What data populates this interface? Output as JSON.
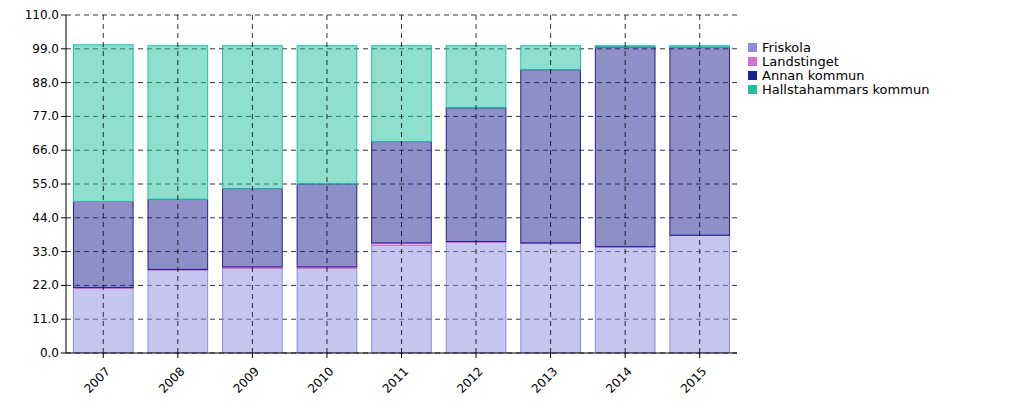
{
  "chart_data": {
    "type": "bar",
    "stacked": true,
    "grid": true,
    "legend": "right",
    "categories": [
      "2007",
      "2008",
      "2009",
      "2010",
      "2011",
      "2012",
      "2013",
      "2014",
      "2015"
    ],
    "series": [
      {
        "name": "Friskola",
        "color": "#8c8ce0",
        "values": [
          21,
          27,
          27.5,
          27.5,
          35,
          36,
          35.7,
          34.5,
          38.3
        ]
      },
      {
        "name": "Landstinget",
        "color": "#d070d0",
        "values": [
          0.3,
          0.2,
          0.5,
          0.5,
          0.8,
          0.3,
          0.1,
          0.1,
          0
        ]
      },
      {
        "name": "Annan kommun",
        "color": "#202090",
        "values": [
          28,
          22.8,
          25.5,
          27,
          33,
          43.5,
          56.4,
          65,
          61.2
        ]
      },
      {
        "name": "Hallstahammars kommun",
        "color": "#20c0a0",
        "values": [
          51,
          50,
          46.5,
          45,
          31.2,
          20.2,
          7.8,
          0.4,
          0.5
        ]
      }
    ],
    "ylim": [
      0,
      110
    ],
    "yticks": [
      {
        "value": 0,
        "label": "0.0"
      },
      {
        "value": 11,
        "label": "11.0"
      },
      {
        "value": 22,
        "label": "22.0"
      },
      {
        "value": 33,
        "label": "33.0"
      },
      {
        "value": 44,
        "label": "44.0"
      },
      {
        "value": 55,
        "label": "55.0"
      },
      {
        "value": 66,
        "label": "66.0"
      },
      {
        "value": 77,
        "label": "77.0"
      },
      {
        "value": 88,
        "label": "88.0"
      },
      {
        "value": 99,
        "label": "99.0"
      },
      {
        "value": 110,
        "label": "110.0"
      }
    ]
  }
}
